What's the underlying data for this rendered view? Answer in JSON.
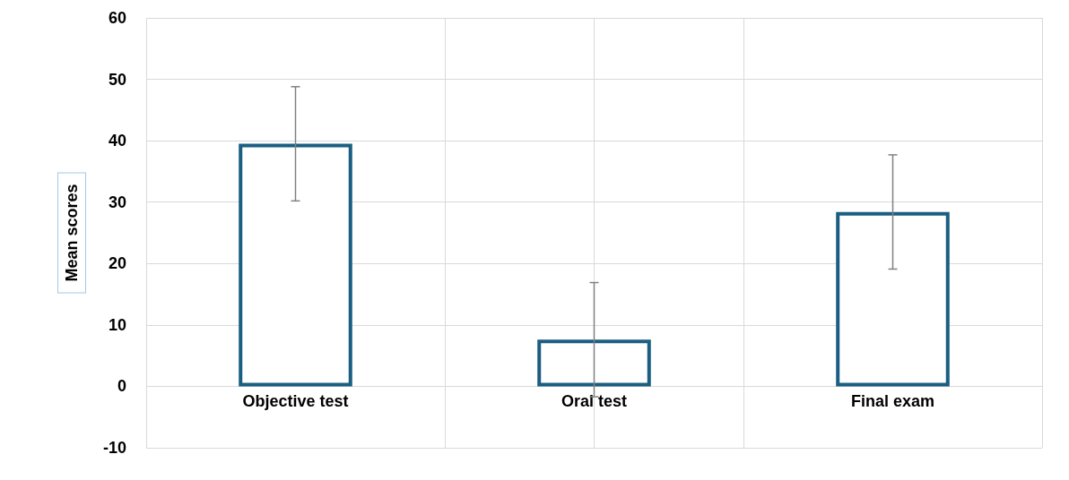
{
  "chart_data": {
    "type": "bar",
    "ylabel": "Mean scores",
    "categories": [
      "Objective test",
      "Oral test",
      "Final exam"
    ],
    "series": [
      {
        "color": "#1b5e82",
        "values": [
          39.5,
          7.6,
          28.4
        ],
        "errors": [
          9.3,
          9.3,
          9.3
        ]
      }
    ],
    "ylim": [
      -10,
      60
    ],
    "yticks": [
      -10,
      0,
      10,
      20,
      30,
      40,
      50,
      60
    ],
    "grid": true
  }
}
